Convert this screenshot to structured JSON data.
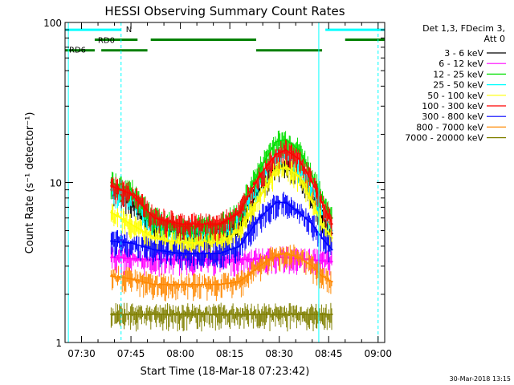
{
  "chart_data": {
    "type": "line",
    "title": "HESSI Observing Summary Count Rates",
    "xlabel": "Start Time (18-Mar-18 07:23:42)",
    "ylabel": "Count Rate (s⁻¹ detector⁻¹)",
    "yscale": "log",
    "ylim": [
      1,
      100
    ],
    "xlim_minutes_after_0700": [
      25,
      122
    ],
    "x_ticks": [
      {
        "t": 30,
        "label": "07:30"
      },
      {
        "t": 45,
        "label": "07:45"
      },
      {
        "t": 60,
        "label": "08:00"
      },
      {
        "t": 75,
        "label": "08:15"
      },
      {
        "t": 90,
        "label": "08:30"
      },
      {
        "t": 105,
        "label": "08:45"
      },
      {
        "t": 120,
        "label": "09:00"
      }
    ],
    "y_ticks": [
      {
        "v": 1,
        "label": "1"
      },
      {
        "v": 10,
        "label": "10"
      },
      {
        "v": 100,
        "label": "100"
      }
    ],
    "legend_header": [
      "Det 1,3, FDecim 3,",
      "Att 0"
    ],
    "legend_position": "right",
    "series": [
      {
        "name": "3 - 6 keV",
        "color": "#000000",
        "points": [
          [
            39,
            9
          ],
          [
            45,
            7.5
          ],
          [
            52,
            5.2
          ],
          [
            60,
            4.8
          ],
          [
            72,
            4.8
          ],
          [
            78,
            5.5
          ],
          [
            84,
            9
          ],
          [
            89,
            12.5
          ],
          [
            92,
            13
          ],
          [
            96,
            11
          ],
          [
            100,
            8
          ],
          [
            103,
            6
          ],
          [
            106,
            4.8
          ]
        ]
      },
      {
        "name": "6 - 12 keV",
        "color": "#ff00ff",
        "points": [
          [
            39,
            3.4
          ],
          [
            50,
            3.3
          ],
          [
            60,
            3.3
          ],
          [
            70,
            3.3
          ],
          [
            80,
            3.3
          ],
          [
            90,
            3.4
          ],
          [
            100,
            3.3
          ],
          [
            106,
            3.2
          ]
        ]
      },
      {
        "name": "12 - 25 keV",
        "color": "#00e000",
        "points": [
          [
            39,
            10
          ],
          [
            45,
            9
          ],
          [
            52,
            6
          ],
          [
            60,
            5.3
          ],
          [
            72,
            5.4
          ],
          [
            78,
            6.5
          ],
          [
            84,
            12
          ],
          [
            89,
            18
          ],
          [
            92,
            18.5
          ],
          [
            96,
            16
          ],
          [
            100,
            11
          ],
          [
            103,
            8
          ],
          [
            106,
            6
          ]
        ]
      },
      {
        "name": "25 - 50 keV",
        "color": "#00ffff",
        "points": [
          [
            39,
            9
          ],
          [
            45,
            8
          ],
          [
            52,
            5.6
          ],
          [
            60,
            5
          ],
          [
            72,
            5
          ],
          [
            78,
            6
          ],
          [
            84,
            10
          ],
          [
            89,
            14
          ],
          [
            92,
            14.5
          ],
          [
            96,
            12.5
          ],
          [
            100,
            9
          ],
          [
            103,
            6.5
          ],
          [
            106,
            5
          ]
        ]
      },
      {
        "name": "50 - 100 keV",
        "color": "#ffff00",
        "points": [
          [
            39,
            6.5
          ],
          [
            45,
            5.5
          ],
          [
            52,
            4.5
          ],
          [
            60,
            4.2
          ],
          [
            72,
            4.2
          ],
          [
            78,
            5
          ],
          [
            84,
            8
          ],
          [
            89,
            12
          ],
          [
            92,
            12.5
          ],
          [
            96,
            11
          ],
          [
            100,
            7.5
          ],
          [
            103,
            5.5
          ],
          [
            106,
            4.5
          ]
        ]
      },
      {
        "name": "100 - 300 keV",
        "color": "#ff0000",
        "points": [
          [
            39,
            9.5
          ],
          [
            45,
            8.5
          ],
          [
            52,
            6
          ],
          [
            60,
            5.5
          ],
          [
            72,
            5.5
          ],
          [
            78,
            6.5
          ],
          [
            84,
            11
          ],
          [
            89,
            15
          ],
          [
            92,
            16
          ],
          [
            96,
            14
          ],
          [
            100,
            10
          ],
          [
            103,
            7.5
          ],
          [
            106,
            5.5
          ]
        ]
      },
      {
        "name": "300 - 800 keV",
        "color": "#0000ff",
        "points": [
          [
            39,
            4.3
          ],
          [
            45,
            4.2
          ],
          [
            52,
            3.8
          ],
          [
            60,
            3.6
          ],
          [
            72,
            3.6
          ],
          [
            78,
            4
          ],
          [
            84,
            6
          ],
          [
            89,
            7.5
          ],
          [
            92,
            7.5
          ],
          [
            96,
            6.5
          ],
          [
            100,
            5.5
          ],
          [
            103,
            4.5
          ],
          [
            106,
            3.8
          ]
        ]
      },
      {
        "name": "800 - 7000 keV",
        "color": "#ff8800",
        "points": [
          [
            39,
            2.6
          ],
          [
            45,
            2.5
          ],
          [
            52,
            2.3
          ],
          [
            60,
            2.3
          ],
          [
            72,
            2.3
          ],
          [
            78,
            2.4
          ],
          [
            84,
            3
          ],
          [
            89,
            3.5
          ],
          [
            92,
            3.6
          ],
          [
            96,
            3.4
          ],
          [
            100,
            3
          ],
          [
            103,
            2.6
          ],
          [
            106,
            2.4
          ]
        ]
      },
      {
        "name": "7000 - 20000 keV",
        "color": "#808000",
        "points": [
          [
            39,
            1.5
          ],
          [
            50,
            1.5
          ],
          [
            60,
            1.5
          ],
          [
            70,
            1.5
          ],
          [
            80,
            1.5
          ],
          [
            90,
            1.5
          ],
          [
            100,
            1.5
          ],
          [
            106,
            1.5
          ]
        ]
      }
    ],
    "bands": [
      {
        "label": "N",
        "color": "#00ffff",
        "level": 90,
        "segments": [
          [
            25,
            42
          ],
          [
            104,
            122
          ]
        ]
      },
      {
        "label": "RD0",
        "color": "#008000",
        "level": 78,
        "segments": [
          [
            34,
            47
          ],
          [
            51,
            83
          ],
          [
            110,
            122
          ]
        ]
      },
      {
        "label": "RD6",
        "color": "#008000",
        "level": 67,
        "segments": [
          [
            25,
            34
          ],
          [
            36,
            50
          ],
          [
            83,
            103
          ]
        ]
      }
    ],
    "vlines_solid": [
      26,
      102
    ],
    "vlines_dashed": [
      42,
      120
    ],
    "vline_color": "#00ffff",
    "timestamp": "30-Mar-2018 13:15"
  }
}
